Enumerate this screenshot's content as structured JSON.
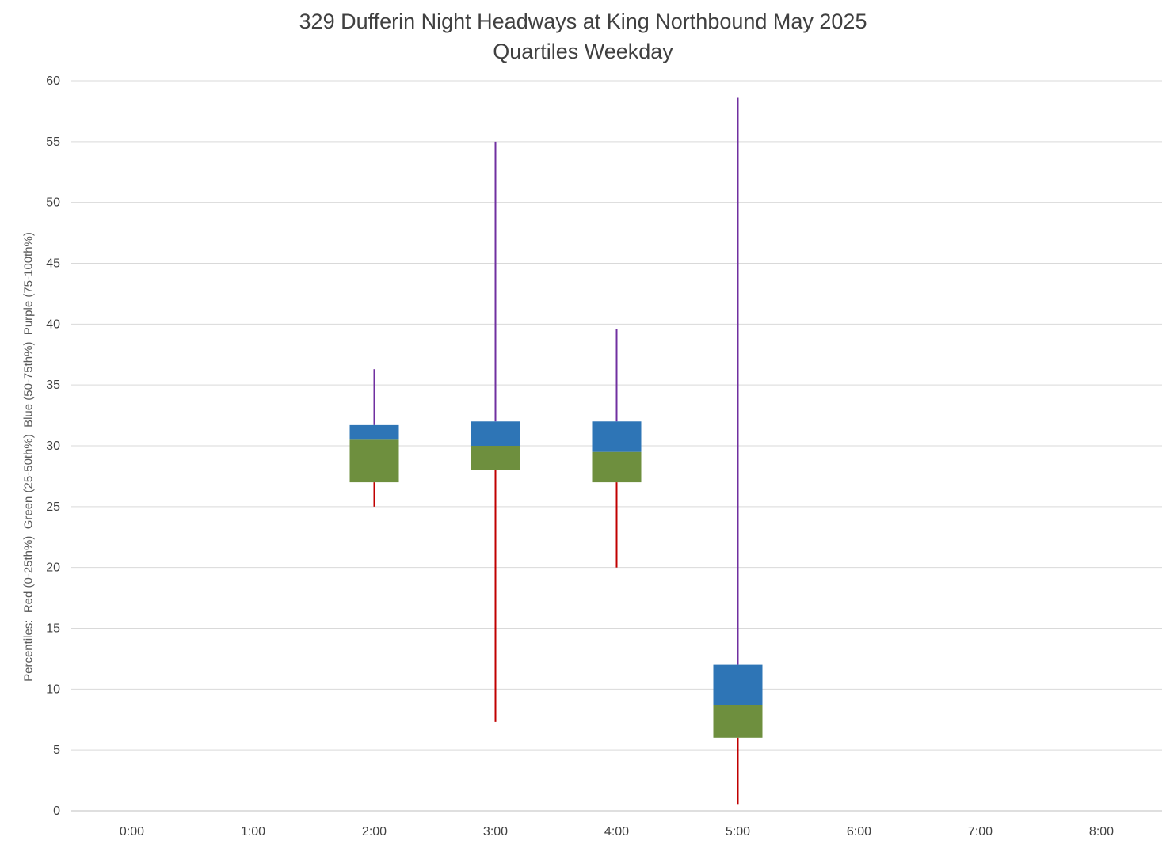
{
  "chart_data": {
    "type": "box",
    "title": "329 Dufferin Night Headways at King Northbound May 2025",
    "subtitle": "Quartiles Weekday",
    "ylabel": "Percentiles:  Red (0-25th%)  Green (25-50th%)  Blue (50-75th%)  Purple (75-100th%)",
    "xlabel": "",
    "categories": [
      "0:00",
      "1:00",
      "2:00",
      "3:00",
      "4:00",
      "5:00",
      "6:00",
      "7:00",
      "8:00"
    ],
    "ylim": [
      0,
      60
    ],
    "yticks": [
      0,
      5,
      10,
      15,
      20,
      25,
      30,
      35,
      40,
      45,
      50,
      55,
      60
    ],
    "grid": true,
    "legend_position": "none",
    "colors": {
      "p0_25_red": "#C00000",
      "p25_50_green": "#6E8F3E",
      "p50_75_blue": "#2E75B6",
      "p75_100_purple": "#7030A0",
      "gridline": "#D9D9D9",
      "axis_line": "#BFBFBF",
      "title_text": "#404040",
      "tick_text": "#404040"
    },
    "boxes": [
      {
        "category": "0:00",
        "values": null
      },
      {
        "category": "1:00",
        "values": null
      },
      {
        "category": "2:00",
        "values": {
          "min": 25.0,
          "q1": 27.0,
          "median": 30.5,
          "q3": 31.7,
          "max": 36.3
        }
      },
      {
        "category": "3:00",
        "values": {
          "min": 7.3,
          "q1": 28.0,
          "median": 30.0,
          "q3": 32.0,
          "max": 55.0
        }
      },
      {
        "category": "4:00",
        "values": {
          "min": 20.0,
          "q1": 27.0,
          "median": 29.5,
          "q3": 32.0,
          "max": 39.6
        }
      },
      {
        "category": "5:00",
        "values": {
          "min": 0.5,
          "q1": 6.0,
          "median": 8.7,
          "q3": 12.0,
          "max": 58.6
        }
      },
      {
        "category": "6:00",
        "values": null
      },
      {
        "category": "7:00",
        "values": null
      },
      {
        "category": "8:00",
        "values": null
      }
    ]
  }
}
